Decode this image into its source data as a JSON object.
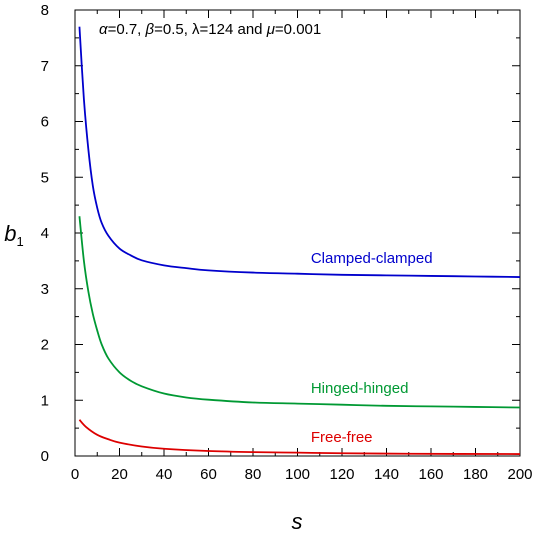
{
  "chart_data": {
    "type": "line",
    "xlabel": "s",
    "ylabel": {
      "main": "b",
      "sub": "1"
    },
    "annotation": {
      "alpha_sym": "α",
      "alpha_val": "=0.7, ",
      "beta_sym": "β",
      "beta_val": "=0.5, ",
      "lambda_sym": "λ",
      "lambda_val": "=124 and ",
      "mu_sym": "μ",
      "mu_val": "=0.001"
    },
    "xlim": [
      0,
      200
    ],
    "ylim": [
      0,
      8
    ],
    "xticks": [
      0,
      20,
      40,
      60,
      80,
      100,
      120,
      140,
      160,
      180,
      200
    ],
    "yticks": [
      0,
      1,
      2,
      3,
      4,
      5,
      6,
      7,
      8
    ],
    "grid": false,
    "series": [
      {
        "name": "Clamped-clamped",
        "color": "#0000cc",
        "x": [
          2,
          4,
          6,
          8,
          10,
          12,
          15,
          20,
          25,
          30,
          40,
          50,
          60,
          80,
          100,
          120,
          140,
          160,
          180,
          200
        ],
        "y": [
          7.7,
          6.4,
          5.5,
          4.85,
          4.45,
          4.18,
          3.95,
          3.72,
          3.6,
          3.51,
          3.42,
          3.37,
          3.33,
          3.29,
          3.27,
          3.25,
          3.24,
          3.23,
          3.22,
          3.21
        ]
      },
      {
        "name": "Hinged-hinged",
        "color": "#009933",
        "x": [
          2,
          4,
          6,
          8,
          10,
          12,
          15,
          20,
          25,
          30,
          40,
          50,
          60,
          80,
          100,
          120,
          140,
          160,
          180,
          200
        ],
        "y": [
          4.3,
          3.5,
          2.95,
          2.55,
          2.25,
          2.0,
          1.75,
          1.5,
          1.35,
          1.25,
          1.12,
          1.05,
          1.01,
          0.96,
          0.94,
          0.92,
          0.9,
          0.89,
          0.88,
          0.87
        ]
      },
      {
        "name": "Free-free",
        "color": "#dd0000",
        "x": [
          2,
          5,
          10,
          15,
          20,
          30,
          40,
          60,
          80,
          100,
          120,
          150,
          200
        ],
        "y": [
          0.65,
          0.52,
          0.38,
          0.3,
          0.24,
          0.17,
          0.13,
          0.09,
          0.07,
          0.06,
          0.05,
          0.04,
          0.035
        ]
      }
    ],
    "series_label_positions": [
      {
        "x": 106,
        "y": 3.55
      },
      {
        "x": 106,
        "y": 1.22
      },
      {
        "x": 106,
        "y": 0.34
      }
    ]
  }
}
